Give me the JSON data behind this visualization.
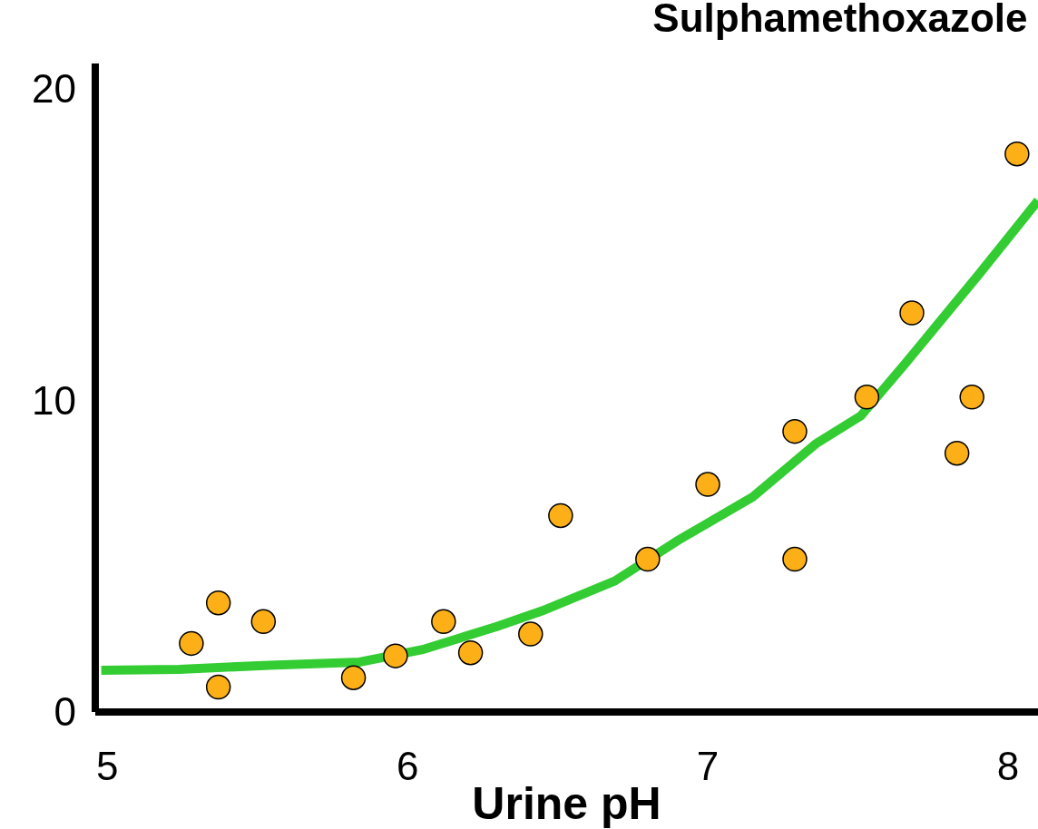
{
  "chart_data": {
    "type": "scatter",
    "title": "Sulphamethoxazole",
    "xlabel": "Urine pH",
    "xlim": [
      4.96,
      8.1
    ],
    "xticks": [
      5,
      6,
      7,
      8
    ],
    "ylim": [
      0,
      20.8
    ],
    "yticks": [
      0,
      10,
      20
    ],
    "grid": false,
    "marker": "circle",
    "series": [
      {
        "type": "line",
        "color": "#33cc33",
        "marker": "none",
        "x": [
          4.98,
          5.24,
          5.54,
          5.84,
          6.05,
          6.3,
          6.45,
          6.69,
          6.9,
          7.15,
          7.36,
          7.51,
          7.66,
          7.9,
          8.1
        ],
        "values": [
          1.34,
          1.37,
          1.5,
          1.6,
          2.0,
          2.75,
          3.25,
          4.2,
          5.5,
          6.9,
          8.6,
          9.5,
          11.2,
          14.0,
          16.4
        ]
      },
      {
        "color": "#fcaf17",
        "x": [
          5.28,
          5.37,
          5.37,
          5.52,
          5.82,
          5.96,
          6.12,
          6.21,
          6.41,
          6.51,
          6.8,
          7.0,
          7.29,
          7.29,
          7.53,
          7.68,
          7.83,
          7.88,
          8.03
        ],
        "values": [
          2.2,
          3.5,
          0.8,
          2.9,
          1.1,
          1.8,
          2.9,
          1.9,
          2.5,
          6.3,
          4.9,
          7.3,
          9.0,
          4.9,
          10.1,
          12.8,
          8.3,
          10.1,
          17.9
        ]
      }
    ]
  }
}
